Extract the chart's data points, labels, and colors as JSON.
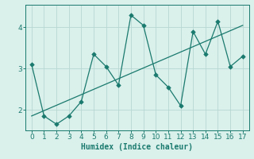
{
  "xlabel": "Humidex (Indice chaleur)",
  "x_data": [
    0,
    1,
    2,
    3,
    4,
    5,
    6,
    7,
    8,
    9,
    10,
    11,
    12,
    13,
    14,
    15,
    16,
    17
  ],
  "y_main": [
    3.1,
    1.85,
    1.65,
    1.85,
    2.2,
    3.35,
    3.05,
    2.6,
    4.3,
    4.05,
    2.85,
    2.55,
    2.1,
    3.9,
    3.35,
    4.15,
    3.05,
    3.3
  ],
  "y_trend_x": [
    0,
    17
  ],
  "y_trend_y": [
    1.85,
    4.05
  ],
  "ylim": [
    1.5,
    4.55
  ],
  "xlim": [
    -0.5,
    17.5
  ],
  "yticks": [
    2,
    3,
    4
  ],
  "xticks": [
    0,
    1,
    2,
    3,
    4,
    5,
    6,
    7,
    8,
    9,
    10,
    11,
    12,
    13,
    14,
    15,
    16,
    17
  ],
  "line_color": "#1a7a6e",
  "bg_color": "#daf0eb",
  "grid_color": "#b8d8d3",
  "tick_color": "#1a7a6e",
  "spine_color": "#1a7a6e",
  "label_fontsize": 7,
  "tick_fontsize": 6.5,
  "linewidth": 0.9,
  "markersize": 2.8
}
